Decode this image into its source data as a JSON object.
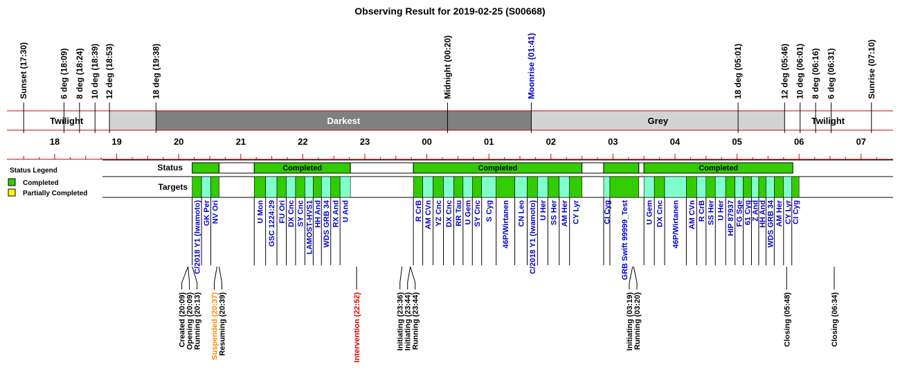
{
  "colors": {
    "completed": "#33cc00",
    "target_alt": "#80ffcc",
    "partial": "#ffff00",
    "twilight": "#ffffff",
    "darkest": "#808080",
    "grey": "#d3d3d3",
    "axis_line": "#cc0000",
    "moon": "#0000cc",
    "target_text": "#0000cc",
    "suspended": "#ff8c00",
    "intervention": "#dd0000"
  },
  "chart_data": {
    "type": "timeline",
    "title": "Observing Result for 2019-02-25 (S00668)",
    "x_unit": "hour (UT+9, hours past 17:00)",
    "x_range": [
      17.5,
      31.3
    ],
    "sun_events": [
      {
        "label": "Sunset (17:30)",
        "t": 17.5
      },
      {
        "label": "6 deg (18:09)",
        "t": 18.15
      },
      {
        "label": "8 deg (18:24)",
        "t": 18.4
      },
      {
        "label": "10 deg (18:39)",
        "t": 18.65
      },
      {
        "label": "12 deg (18:53)",
        "t": 18.883
      },
      {
        "label": "18 deg (19:38)",
        "t": 19.633
      },
      {
        "label": "Midnight (00:20)",
        "t": 24.333
      },
      {
        "label": "Moonrise (01:41)",
        "t": 25.683,
        "moon": true
      },
      {
        "label": "18 deg (05:01)",
        "t": 29.017
      },
      {
        "label": "12 deg (05:46)",
        "t": 29.767
      },
      {
        "label": "10 deg (06:01)",
        "t": 30.017
      },
      {
        "label": "8 deg (06:16)",
        "t": 30.267
      },
      {
        "label": "6 deg (06:31)",
        "t": 30.517
      },
      {
        "label": "Sunrise (07:10)",
        "t": 31.167
      }
    ],
    "sky_bands": [
      {
        "label": "Twilight",
        "start": 17.5,
        "end": 18.883,
        "kind": "twilight"
      },
      {
        "label": "",
        "start": 18.883,
        "end": 19.633,
        "kind": "grey"
      },
      {
        "label": "Darkest",
        "start": 19.633,
        "end": 25.683,
        "kind": "darkest"
      },
      {
        "label": "Grey",
        "start": 25.683,
        "end": 29.767,
        "kind": "grey"
      },
      {
        "label": "Twilight",
        "start": 29.767,
        "end": 31.167,
        "kind": "twilight"
      }
    ],
    "hour_ticks": [
      {
        "label": "18",
        "t": 18
      },
      {
        "label": "19",
        "t": 19
      },
      {
        "label": "20",
        "t": 20
      },
      {
        "label": "21",
        "t": 21
      },
      {
        "label": "22",
        "t": 22
      },
      {
        "label": "23",
        "t": 23
      },
      {
        "label": "00",
        "t": 24
      },
      {
        "label": "01",
        "t": 25
      },
      {
        "label": "02",
        "t": 26
      },
      {
        "label": "03",
        "t": 27
      },
      {
        "label": "04",
        "t": 28
      },
      {
        "label": "05",
        "t": 29
      },
      {
        "label": "06",
        "t": 30
      },
      {
        "label": "07",
        "t": 31
      }
    ],
    "row_labels": {
      "status": "Status",
      "targets": "Targets"
    },
    "status_blocks": [
      {
        "start": 20.217,
        "end": 20.65,
        "label": "",
        "filled": true
      },
      {
        "start": 20.65,
        "end": 21.217,
        "label": "",
        "filled": false
      },
      {
        "start": 21.217,
        "end": 22.767,
        "label": "Completed",
        "filled": true
      },
      {
        "start": 22.767,
        "end": 23.783,
        "label": "",
        "filled": false
      },
      {
        "start": 23.783,
        "end": 26.5,
        "label": "Completed",
        "filled": true
      },
      {
        "start": 26.5,
        "end": 26.85,
        "label": "",
        "filled": false
      },
      {
        "start": 26.85,
        "end": 27.417,
        "label": "",
        "filled": true
      },
      {
        "start": 27.417,
        "end": 27.5,
        "label": "",
        "filled": false
      },
      {
        "start": 27.5,
        "end": 29.9,
        "label": "Completed",
        "filled": true
      }
    ],
    "targets": [
      {
        "label": "C/2018 Y1 (Iwamoto)",
        "start": 20.217,
        "end": 20.367,
        "alt": false
      },
      {
        "label": "GK Per",
        "start": 20.367,
        "end": 20.517,
        "alt": true
      },
      {
        "label": "NV Ori",
        "start": 20.517,
        "end": 20.65,
        "alt": false
      },
      {
        "label": "U Mon",
        "start": 21.217,
        "end": 21.4,
        "alt": false
      },
      {
        "label": "GSC 1224:29",
        "start": 21.4,
        "end": 21.583,
        "alt": true
      },
      {
        "label": "FU Ori",
        "start": 21.583,
        "end": 21.733,
        "alt": false
      },
      {
        "label": "DX Cnc",
        "start": 21.733,
        "end": 21.883,
        "alt": true
      },
      {
        "label": "SY Cnc",
        "start": 21.883,
        "end": 22.033,
        "alt": false
      },
      {
        "label": "LAMOST-HVS1",
        "start": 22.033,
        "end": 22.167,
        "alt": true
      },
      {
        "label": "HH And",
        "start": 22.167,
        "end": 22.3,
        "alt": false
      },
      {
        "label": "WDS GRB 34",
        "start": 22.3,
        "end": 22.45,
        "alt": true
      },
      {
        "label": "RX And",
        "start": 22.45,
        "end": 22.6,
        "alt": false
      },
      {
        "label": "U And",
        "start": 22.6,
        "end": 22.767,
        "alt": true
      },
      {
        "label": "R CrB",
        "start": 23.783,
        "end": 23.933,
        "alt": false
      },
      {
        "label": "AM CVn",
        "start": 23.933,
        "end": 24.1,
        "alt": true
      },
      {
        "label": "YZ Cnc",
        "start": 24.1,
        "end": 24.267,
        "alt": false
      },
      {
        "label": "DX Cnc",
        "start": 24.267,
        "end": 24.433,
        "alt": true
      },
      {
        "label": "RR Tau",
        "start": 24.433,
        "end": 24.583,
        "alt": false
      },
      {
        "label": "U Gem",
        "start": 24.583,
        "end": 24.733,
        "alt": true
      },
      {
        "label": "SY Cnc",
        "start": 24.733,
        "end": 24.883,
        "alt": false
      },
      {
        "label": "S Cyg",
        "start": 24.883,
        "end": 25.117,
        "alt": true
      },
      {
        "label": "46P/Wirtanen",
        "start": 25.117,
        "end": 25.417,
        "alt": false
      },
      {
        "label": "CN Leo",
        "start": 25.417,
        "end": 25.617,
        "alt": true
      },
      {
        "label": "C/2018 Y1 (Iwamoto)",
        "start": 25.617,
        "end": 25.783,
        "alt": false
      },
      {
        "label": "U Her",
        "start": 25.783,
        "end": 25.95,
        "alt": true
      },
      {
        "label": "SS Her",
        "start": 25.95,
        "end": 26.133,
        "alt": false
      },
      {
        "label": "AM Her",
        "start": 26.133,
        "end": 26.3,
        "alt": true
      },
      {
        "label": "CY Lyr",
        "start": 26.3,
        "end": 26.5,
        "alt": false
      },
      {
        "label": "CI Cyg",
        "start": 26.85,
        "end": 26.95,
        "alt": true
      },
      {
        "label": "GRB Swift 99999_Test",
        "start": 26.95,
        "end": 27.417,
        "alt": false
      },
      {
        "label": "U Gem",
        "start": 27.5,
        "end": 27.667,
        "alt": true
      },
      {
        "label": "DX Cnc",
        "start": 27.667,
        "end": 27.833,
        "alt": false
      },
      {
        "label": "46P/Wirtanen",
        "start": 27.833,
        "end": 28.183,
        "alt": true
      },
      {
        "label": "AM CVn",
        "start": 28.183,
        "end": 28.35,
        "alt": false
      },
      {
        "label": "R CrB",
        "start": 28.35,
        "end": 28.5,
        "alt": true
      },
      {
        "label": "SS Her",
        "start": 28.5,
        "end": 28.65,
        "alt": false
      },
      {
        "label": "U Her",
        "start": 28.65,
        "end": 28.817,
        "alt": true
      },
      {
        "label": "HIP 87937",
        "start": 28.817,
        "end": 28.967,
        "alt": false
      },
      {
        "label": "FG Sge",
        "start": 28.967,
        "end": 29.1,
        "alt": true
      },
      {
        "label": "61 Cyg",
        "start": 29.1,
        "end": 29.233,
        "alt": false
      },
      {
        "label": "Z And",
        "start": 29.233,
        "end": 29.35,
        "alt": true
      },
      {
        "label": "HH And",
        "start": 29.35,
        "end": 29.467,
        "alt": false
      },
      {
        "label": "WDS GRB 34",
        "start": 29.467,
        "end": 29.6,
        "alt": true
      },
      {
        "label": "AM Her",
        "start": 29.6,
        "end": 29.75,
        "alt": false
      },
      {
        "label": "CY Lyr",
        "start": 29.75,
        "end": 29.883,
        "alt": true
      },
      {
        "label": "CI Cyg",
        "start": 29.883,
        "end": 30.0,
        "alt": false
      }
    ],
    "events": [
      {
        "group": [
          {
            "label": "Created (20:09)",
            "t": 20.15
          },
          {
            "label": "Opening (20:09)",
            "t": 20.15
          },
          {
            "label": "Running (20:13)",
            "t": 20.217
          }
        ]
      },
      {
        "group": [
          {
            "label": "Suspended (20:37)",
            "t": 20.617,
            "kind": "suspended"
          },
          {
            "label": "Resuming (20:39)",
            "t": 20.65
          }
        ]
      },
      {
        "group": [
          {
            "label": "Intervention (22:52)",
            "t": 22.867,
            "kind": "intervention"
          }
        ]
      },
      {
        "group": [
          {
            "label": "Initiating (23:36)",
            "t": 23.6
          },
          {
            "label": "Initiating (23:44)",
            "t": 23.733
          },
          {
            "label": "Running (23:44)",
            "t": 23.733
          }
        ]
      },
      {
        "group": [
          {
            "label": "Initiating (03:19)",
            "t": 27.317
          },
          {
            "label": "Running (03:20)",
            "t": 27.333
          }
        ]
      },
      {
        "group": [
          {
            "label": "Closing (05:48)",
            "t": 29.8
          }
        ]
      },
      {
        "group": [
          {
            "label": "Closing (06:34)",
            "t": 30.567
          }
        ]
      }
    ],
    "legend": {
      "title": "Status Legend",
      "items": [
        {
          "label": "Completed",
          "color_key": "completed"
        },
        {
          "label": "Partially Completed",
          "color_key": "partial"
        }
      ],
      "placement": "left"
    }
  }
}
